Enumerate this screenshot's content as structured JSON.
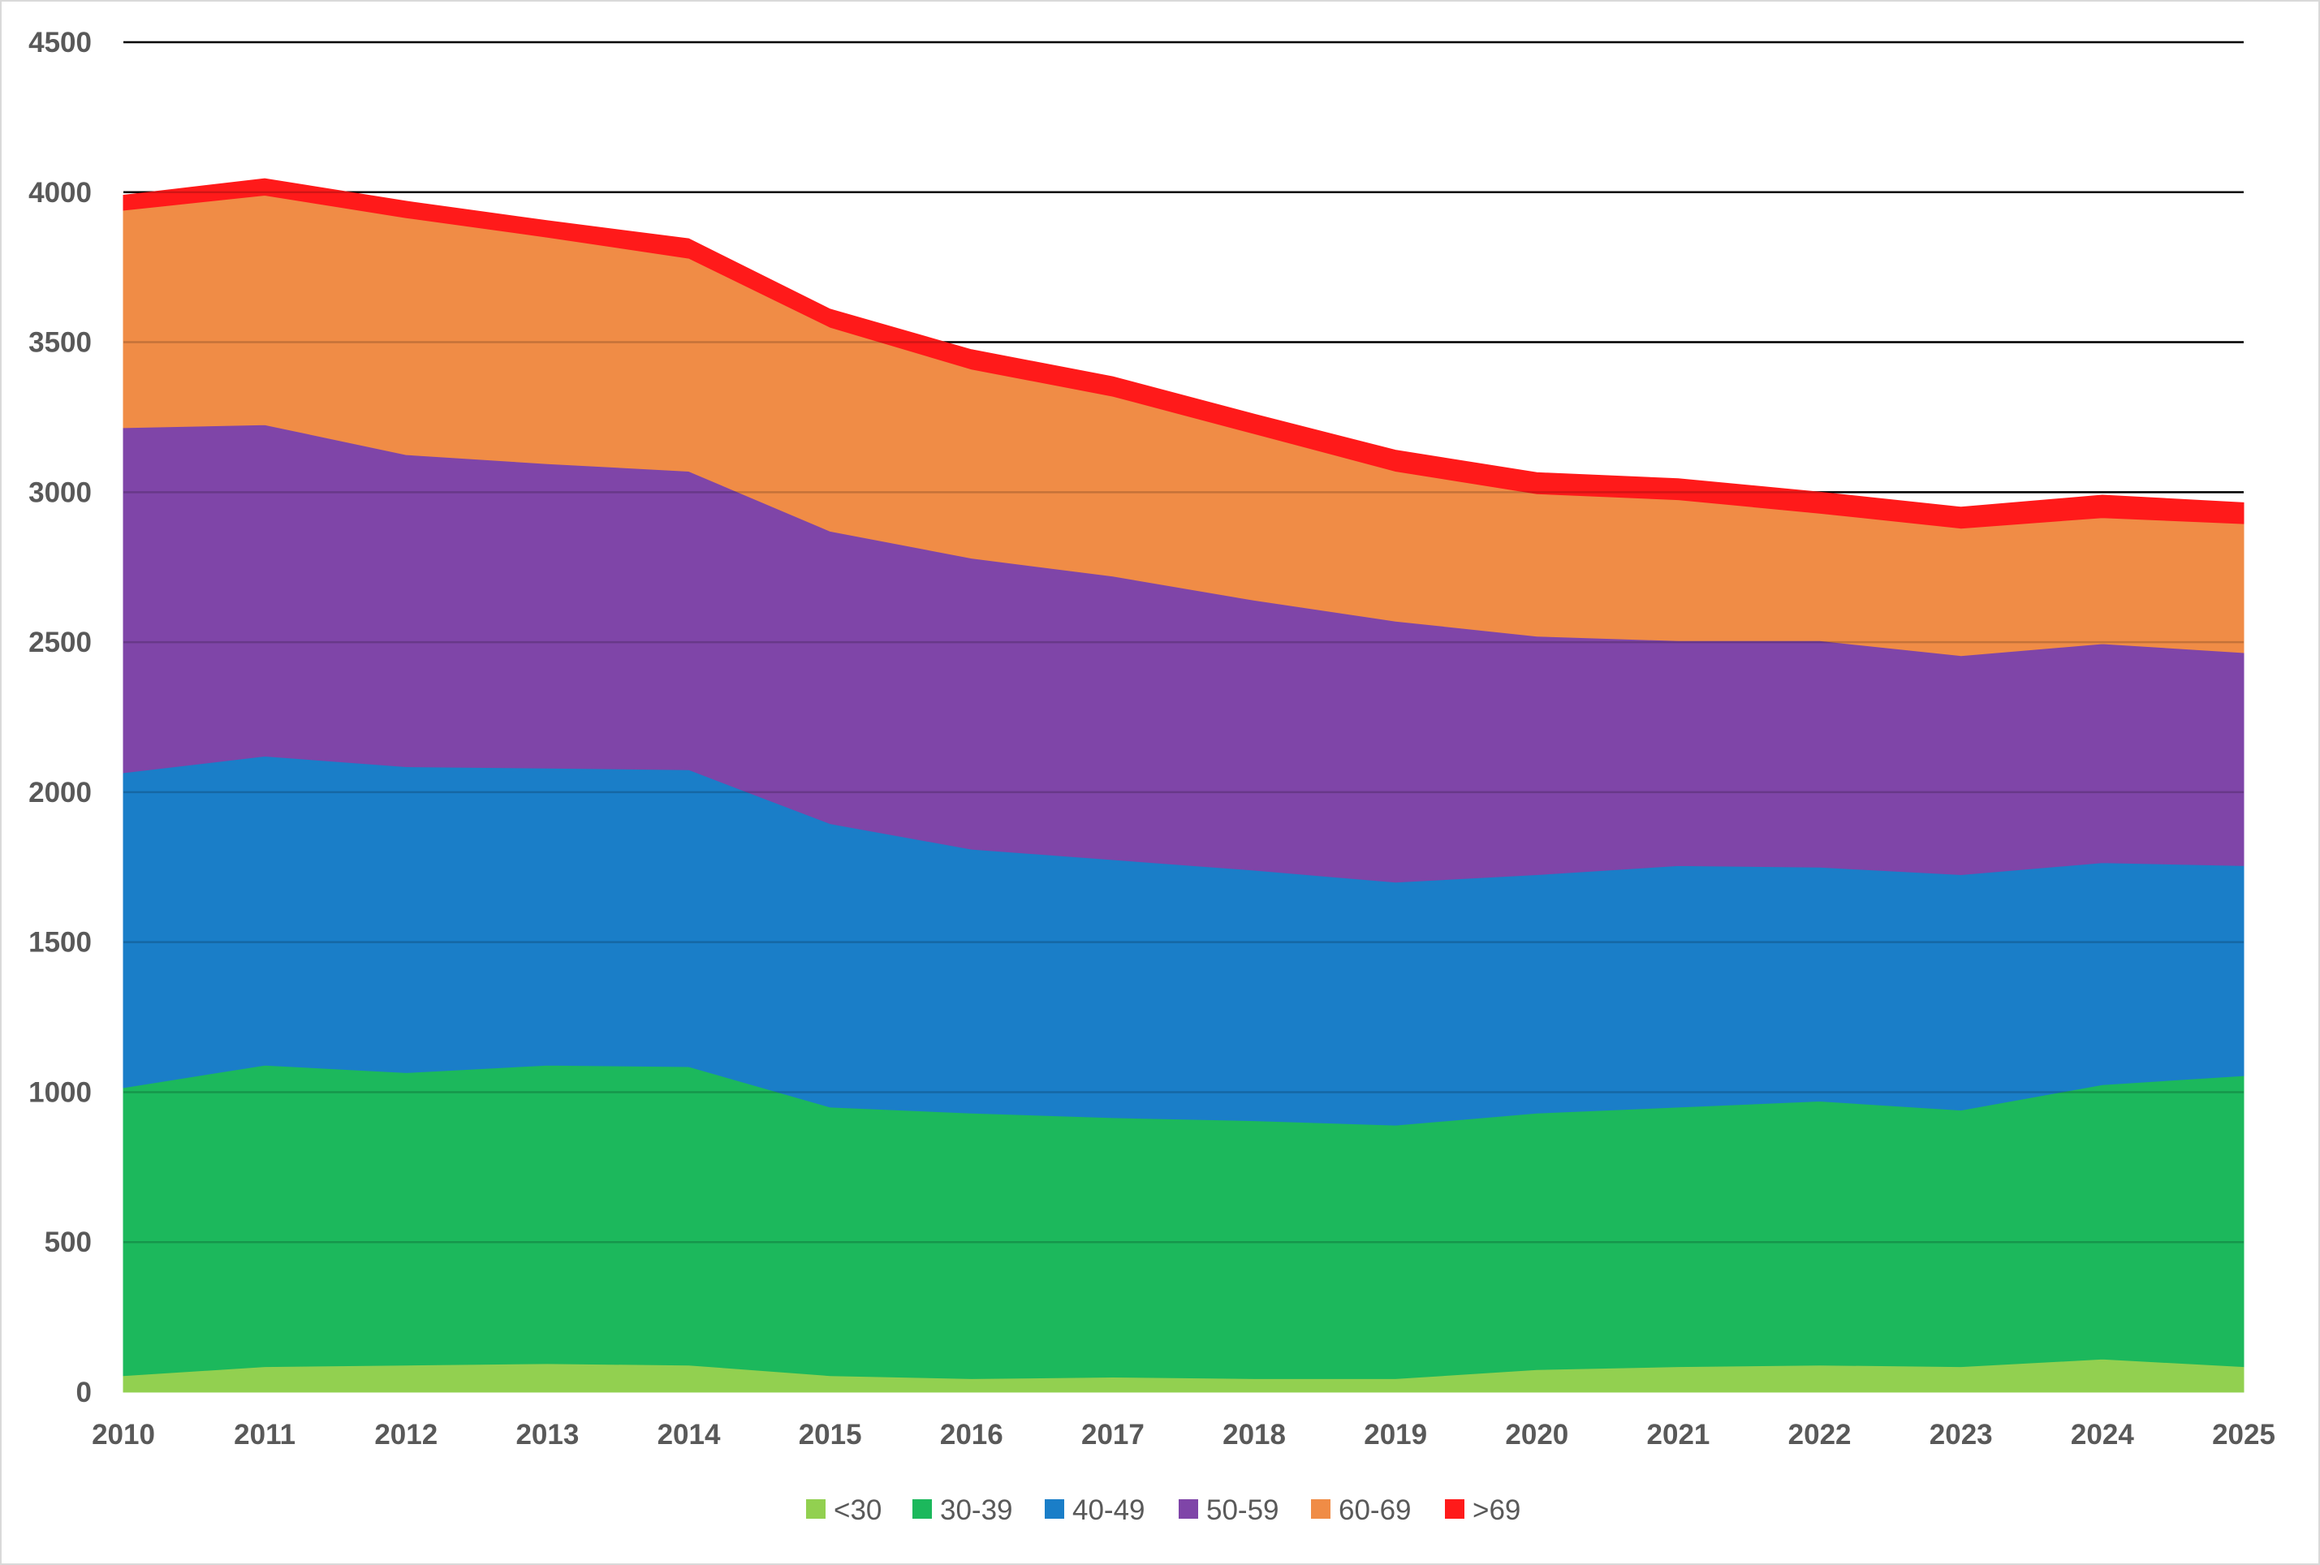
{
  "chart_data": {
    "type": "area",
    "stacked": true,
    "title": "",
    "xlabel": "",
    "ylabel": "",
    "x": [
      "2010",
      "2011",
      "2012",
      "2013",
      "2014",
      "2015",
      "2016",
      "2017",
      "2018",
      "2019",
      "2020",
      "2021",
      "2022",
      "2023",
      "2024",
      "2025"
    ],
    "ylim": [
      0,
      4500
    ],
    "yticks": [
      0,
      500,
      1000,
      1500,
      2000,
      2500,
      3000,
      3500,
      4000,
      4500
    ],
    "grid": true,
    "legend_position": "bottom",
    "series": [
      {
        "name": "<30",
        "color": "#92d050",
        "values": [
          55,
          85,
          90,
          95,
          90,
          55,
          45,
          50,
          45,
          45,
          75,
          85,
          90,
          85,
          110,
          85
        ]
      },
      {
        "name": "30-39",
        "color": "#1cb85c",
        "values": [
          960,
          1005,
          975,
          995,
          995,
          895,
          885,
          865,
          860,
          845,
          855,
          865,
          880,
          855,
          915,
          970
        ]
      },
      {
        "name": "40-49",
        "color": "#1a7ec8",
        "values": [
          1050,
          1030,
          1020,
          990,
          990,
          945,
          880,
          860,
          835,
          810,
          795,
          805,
          780,
          785,
          740,
          700
        ]
      },
      {
        "name": "50-59",
        "color": "#7f45a8",
        "values": [
          1150,
          1105,
          1040,
          1015,
          995,
          975,
          970,
          945,
          900,
          870,
          795,
          750,
          755,
          730,
          730,
          710
        ]
      },
      {
        "name": "60-69",
        "color": "#f08c46",
        "values": [
          725,
          765,
          790,
          755,
          710,
          680,
          630,
          600,
          555,
          500,
          475,
          470,
          425,
          425,
          420,
          430
        ]
      },
      {
        "name": ">69",
        "color": "#ff1a1a",
        "values": [
          50,
          55,
          55,
          55,
          65,
          60,
          65,
          65,
          65,
          70,
          70,
          70,
          70,
          70,
          75,
          70
        ]
      }
    ]
  }
}
